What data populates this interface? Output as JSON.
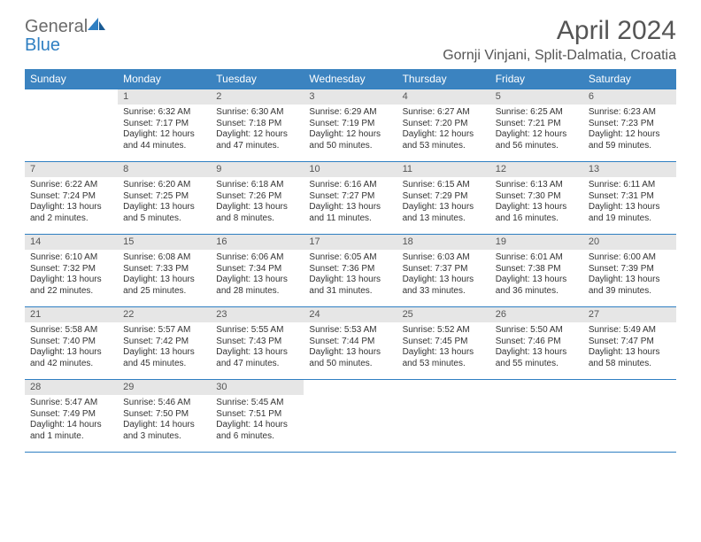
{
  "brand": {
    "name_gray": "General",
    "name_blue": "Blue"
  },
  "title": "April 2024",
  "location": "Gornji Vinjani, Split-Dalmatia, Croatia",
  "colors": {
    "header_bg": "#3b83c0",
    "row_divider": "#2f7fc2",
    "daynum_bg": "#e6e6e6",
    "text": "#333333",
    "title_text": "#555555",
    "background": "#ffffff"
  },
  "calendar": {
    "type": "table",
    "columns": [
      "Sunday",
      "Monday",
      "Tuesday",
      "Wednesday",
      "Thursday",
      "Friday",
      "Saturday"
    ],
    "col_widths_pct": [
      14.28,
      14.28,
      14.28,
      14.28,
      14.28,
      14.28,
      14.28
    ],
    "header_fontsize": 12,
    "cell_fontsize": 10,
    "weeks": [
      [
        {
          "day": "",
          "sunrise": "",
          "sunset": "",
          "daylight": ""
        },
        {
          "day": "1",
          "sunrise": "Sunrise: 6:32 AM",
          "sunset": "Sunset: 7:17 PM",
          "daylight": "Daylight: 12 hours and 44 minutes."
        },
        {
          "day": "2",
          "sunrise": "Sunrise: 6:30 AM",
          "sunset": "Sunset: 7:18 PM",
          "daylight": "Daylight: 12 hours and 47 minutes."
        },
        {
          "day": "3",
          "sunrise": "Sunrise: 6:29 AM",
          "sunset": "Sunset: 7:19 PM",
          "daylight": "Daylight: 12 hours and 50 minutes."
        },
        {
          "day": "4",
          "sunrise": "Sunrise: 6:27 AM",
          "sunset": "Sunset: 7:20 PM",
          "daylight": "Daylight: 12 hours and 53 minutes."
        },
        {
          "day": "5",
          "sunrise": "Sunrise: 6:25 AM",
          "sunset": "Sunset: 7:21 PM",
          "daylight": "Daylight: 12 hours and 56 minutes."
        },
        {
          "day": "6",
          "sunrise": "Sunrise: 6:23 AM",
          "sunset": "Sunset: 7:23 PM",
          "daylight": "Daylight: 12 hours and 59 minutes."
        }
      ],
      [
        {
          "day": "7",
          "sunrise": "Sunrise: 6:22 AM",
          "sunset": "Sunset: 7:24 PM",
          "daylight": "Daylight: 13 hours and 2 minutes."
        },
        {
          "day": "8",
          "sunrise": "Sunrise: 6:20 AM",
          "sunset": "Sunset: 7:25 PM",
          "daylight": "Daylight: 13 hours and 5 minutes."
        },
        {
          "day": "9",
          "sunrise": "Sunrise: 6:18 AM",
          "sunset": "Sunset: 7:26 PM",
          "daylight": "Daylight: 13 hours and 8 minutes."
        },
        {
          "day": "10",
          "sunrise": "Sunrise: 6:16 AM",
          "sunset": "Sunset: 7:27 PM",
          "daylight": "Daylight: 13 hours and 11 minutes."
        },
        {
          "day": "11",
          "sunrise": "Sunrise: 6:15 AM",
          "sunset": "Sunset: 7:29 PM",
          "daylight": "Daylight: 13 hours and 13 minutes."
        },
        {
          "day": "12",
          "sunrise": "Sunrise: 6:13 AM",
          "sunset": "Sunset: 7:30 PM",
          "daylight": "Daylight: 13 hours and 16 minutes."
        },
        {
          "day": "13",
          "sunrise": "Sunrise: 6:11 AM",
          "sunset": "Sunset: 7:31 PM",
          "daylight": "Daylight: 13 hours and 19 minutes."
        }
      ],
      [
        {
          "day": "14",
          "sunrise": "Sunrise: 6:10 AM",
          "sunset": "Sunset: 7:32 PM",
          "daylight": "Daylight: 13 hours and 22 minutes."
        },
        {
          "day": "15",
          "sunrise": "Sunrise: 6:08 AM",
          "sunset": "Sunset: 7:33 PM",
          "daylight": "Daylight: 13 hours and 25 minutes."
        },
        {
          "day": "16",
          "sunrise": "Sunrise: 6:06 AM",
          "sunset": "Sunset: 7:34 PM",
          "daylight": "Daylight: 13 hours and 28 minutes."
        },
        {
          "day": "17",
          "sunrise": "Sunrise: 6:05 AM",
          "sunset": "Sunset: 7:36 PM",
          "daylight": "Daylight: 13 hours and 31 minutes."
        },
        {
          "day": "18",
          "sunrise": "Sunrise: 6:03 AM",
          "sunset": "Sunset: 7:37 PM",
          "daylight": "Daylight: 13 hours and 33 minutes."
        },
        {
          "day": "19",
          "sunrise": "Sunrise: 6:01 AM",
          "sunset": "Sunset: 7:38 PM",
          "daylight": "Daylight: 13 hours and 36 minutes."
        },
        {
          "day": "20",
          "sunrise": "Sunrise: 6:00 AM",
          "sunset": "Sunset: 7:39 PM",
          "daylight": "Daylight: 13 hours and 39 minutes."
        }
      ],
      [
        {
          "day": "21",
          "sunrise": "Sunrise: 5:58 AM",
          "sunset": "Sunset: 7:40 PM",
          "daylight": "Daylight: 13 hours and 42 minutes."
        },
        {
          "day": "22",
          "sunrise": "Sunrise: 5:57 AM",
          "sunset": "Sunset: 7:42 PM",
          "daylight": "Daylight: 13 hours and 45 minutes."
        },
        {
          "day": "23",
          "sunrise": "Sunrise: 5:55 AM",
          "sunset": "Sunset: 7:43 PM",
          "daylight": "Daylight: 13 hours and 47 minutes."
        },
        {
          "day": "24",
          "sunrise": "Sunrise: 5:53 AM",
          "sunset": "Sunset: 7:44 PM",
          "daylight": "Daylight: 13 hours and 50 minutes."
        },
        {
          "day": "25",
          "sunrise": "Sunrise: 5:52 AM",
          "sunset": "Sunset: 7:45 PM",
          "daylight": "Daylight: 13 hours and 53 minutes."
        },
        {
          "day": "26",
          "sunrise": "Sunrise: 5:50 AM",
          "sunset": "Sunset: 7:46 PM",
          "daylight": "Daylight: 13 hours and 55 minutes."
        },
        {
          "day": "27",
          "sunrise": "Sunrise: 5:49 AM",
          "sunset": "Sunset: 7:47 PM",
          "daylight": "Daylight: 13 hours and 58 minutes."
        }
      ],
      [
        {
          "day": "28",
          "sunrise": "Sunrise: 5:47 AM",
          "sunset": "Sunset: 7:49 PM",
          "daylight": "Daylight: 14 hours and 1 minute."
        },
        {
          "day": "29",
          "sunrise": "Sunrise: 5:46 AM",
          "sunset": "Sunset: 7:50 PM",
          "daylight": "Daylight: 14 hours and 3 minutes."
        },
        {
          "day": "30",
          "sunrise": "Sunrise: 5:45 AM",
          "sunset": "Sunset: 7:51 PM",
          "daylight": "Daylight: 14 hours and 6 minutes."
        },
        {
          "day": "",
          "sunrise": "",
          "sunset": "",
          "daylight": ""
        },
        {
          "day": "",
          "sunrise": "",
          "sunset": "",
          "daylight": ""
        },
        {
          "day": "",
          "sunrise": "",
          "sunset": "",
          "daylight": ""
        },
        {
          "day": "",
          "sunrise": "",
          "sunset": "",
          "daylight": ""
        }
      ]
    ]
  }
}
